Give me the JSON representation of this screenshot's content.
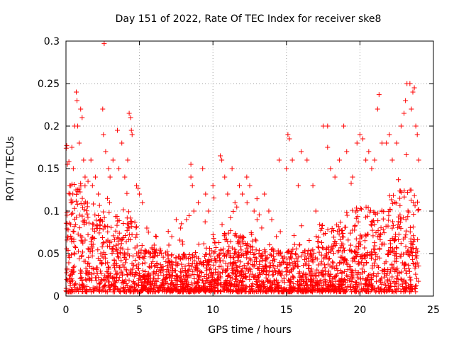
{
  "chart_data": {
    "type": "scatter",
    "title": "Day 151 of 2022, Rate Of TEC Index for receiver ske8",
    "xlabel": "GPS time / hours",
    "ylabel": "ROTI / TECUs",
    "xlim": [
      0,
      25
    ],
    "ylim": [
      0,
      0.3
    ],
    "xticks": [
      "0",
      "5",
      "10",
      "15",
      "20",
      "25"
    ],
    "yticks": [
      "0",
      "0.05",
      "0.1",
      "0.15",
      "0.2",
      "0.25",
      "0.3"
    ],
    "grid": true,
    "marker": "+",
    "color": "#ff0000",
    "points": [
      [
        0.05,
        0.177
      ],
      [
        0.1,
        0.155
      ],
      [
        0.2,
        0.158
      ],
      [
        0.25,
        0.13
      ],
      [
        0.35,
        0.11
      ],
      [
        0.4,
        0.175
      ],
      [
        0.5,
        0.15
      ],
      [
        0.6,
        0.2
      ],
      [
        0.7,
        0.24
      ],
      [
        0.75,
        0.23
      ],
      [
        0.8,
        0.2
      ],
      [
        0.9,
        0.18
      ],
      [
        1.0,
        0.22
      ],
      [
        1.1,
        0.21
      ],
      [
        1.2,
        0.16
      ],
      [
        1.3,
        0.14
      ],
      [
        1.5,
        0.135
      ],
      [
        1.7,
        0.16
      ],
      [
        1.8,
        0.13
      ],
      [
        2.0,
        0.14
      ],
      [
        2.2,
        0.12
      ],
      [
        2.5,
        0.22
      ],
      [
        2.55,
        0.19
      ],
      [
        2.6,
        0.297
      ],
      [
        2.7,
        0.17
      ],
      [
        2.9,
        0.15
      ],
      [
        3.0,
        0.14
      ],
      [
        3.2,
        0.16
      ],
      [
        3.5,
        0.195
      ],
      [
        3.6,
        0.15
      ],
      [
        3.8,
        0.18
      ],
      [
        4.0,
        0.14
      ],
      [
        4.2,
        0.16
      ],
      [
        4.3,
        0.215
      ],
      [
        4.4,
        0.21
      ],
      [
        4.45,
        0.195
      ],
      [
        4.5,
        0.19
      ],
      [
        4.8,
        0.13
      ],
      [
        5.0,
        0.12
      ],
      [
        5.2,
        0.11
      ],
      [
        5.5,
        0.08
      ],
      [
        6.0,
        0.06
      ],
      [
        6.5,
        0.05
      ],
      [
        7.0,
        0.06
      ],
      [
        7.2,
        0.07
      ],
      [
        7.5,
        0.09
      ],
      [
        7.8,
        0.08
      ],
      [
        8.2,
        0.09
      ],
      [
        8.5,
        0.155
      ],
      [
        8.5,
        0.14
      ],
      [
        8.6,
        0.13
      ],
      [
        8.7,
        0.1
      ],
      [
        9.0,
        0.11
      ],
      [
        9.3,
        0.15
      ],
      [
        9.5,
        0.12
      ],
      [
        9.7,
        0.1
      ],
      [
        10.0,
        0.13
      ],
      [
        10.5,
        0.165
      ],
      [
        10.6,
        0.16
      ],
      [
        10.8,
        0.14
      ],
      [
        11.0,
        0.12
      ],
      [
        11.3,
        0.15
      ],
      [
        11.5,
        0.11
      ],
      [
        11.8,
        0.13
      ],
      [
        12.0,
        0.12
      ],
      [
        12.3,
        0.14
      ],
      [
        12.5,
        0.13
      ],
      [
        12.8,
        0.1
      ],
      [
        13.0,
        0.09
      ],
      [
        13.5,
        0.12
      ],
      [
        13.8,
        0.1
      ],
      [
        14.0,
        0.09
      ],
      [
        14.5,
        0.16
      ],
      [
        15.0,
        0.15
      ],
      [
        15.1,
        0.19
      ],
      [
        15.2,
        0.185
      ],
      [
        15.4,
        0.16
      ],
      [
        15.8,
        0.13
      ],
      [
        16.0,
        0.17
      ],
      [
        16.4,
        0.16
      ],
      [
        16.8,
        0.13
      ],
      [
        17.0,
        0.1
      ],
      [
        17.5,
        0.2
      ],
      [
        17.8,
        0.2
      ],
      [
        17.8,
        0.175
      ],
      [
        18.0,
        0.15
      ],
      [
        18.3,
        0.14
      ],
      [
        18.6,
        0.16
      ],
      [
        18.9,
        0.2
      ],
      [
        19.1,
        0.17
      ],
      [
        19.5,
        0.14
      ],
      [
        19.8,
        0.18
      ],
      [
        20.0,
        0.19
      ],
      [
        20.2,
        0.185
      ],
      [
        20.4,
        0.16
      ],
      [
        20.6,
        0.17
      ],
      [
        20.8,
        0.15
      ],
      [
        21.0,
        0.16
      ],
      [
        21.2,
        0.22
      ],
      [
        21.3,
        0.237
      ],
      [
        21.5,
        0.18
      ],
      [
        21.8,
        0.18
      ],
      [
        22.0,
        0.19
      ],
      [
        22.2,
        0.16
      ],
      [
        22.5,
        0.18
      ],
      [
        22.8,
        0.2
      ],
      [
        23.0,
        0.215
      ],
      [
        23.1,
        0.23
      ],
      [
        23.2,
        0.25
      ],
      [
        23.4,
        0.25
      ],
      [
        23.5,
        0.22
      ],
      [
        23.6,
        0.24
      ],
      [
        23.7,
        0.245
      ],
      [
        23.8,
        0.2
      ],
      [
        23.9,
        0.19
      ],
      [
        24.0,
        0.16
      ]
    ]
  }
}
